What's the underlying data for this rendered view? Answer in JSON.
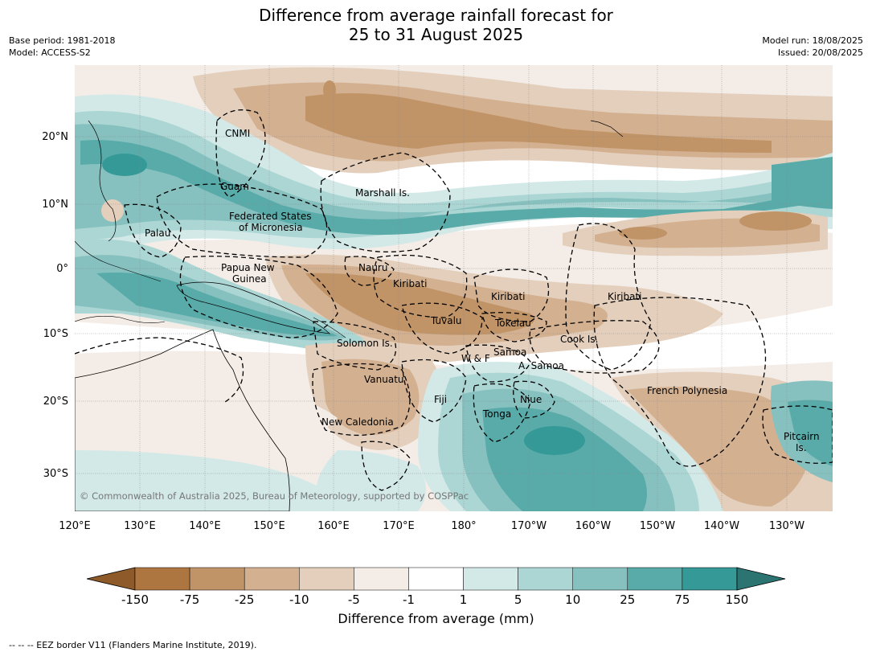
{
  "title_line1": "Difference from average rainfall forecast for",
  "title_line2": "25 to 31 August 2025",
  "base_period": "Base period: 1981-2018",
  "model": "Model: ACCESS-S2",
  "model_run": "Model run: 18/08/2025",
  "issued": "Issued: 20/08/2025",
  "copyright": "© Commonwealth of Australia 2025, Bureau of Meteorology, supported by COSPPac",
  "footnote": "--  --  -- EEZ border V11 (Flanders Marine Institute, 2019).",
  "colorbar": {
    "label": "Difference from average (mm)",
    "ticks": [
      "-150",
      "-75",
      "-25",
      "-10",
      "-5",
      "-1",
      "1",
      "5",
      "10",
      "25",
      "75",
      "150"
    ],
    "colors": [
      "#8e5a2a",
      "#ad7540",
      "#c19468",
      "#d3b090",
      "#e3cfbc",
      "#f4ece6",
      "#ffffff",
      "#d3e9e8",
      "#acd6d4",
      "#86c1c0",
      "#59aba9",
      "#359997",
      "#2b7472"
    ]
  },
  "lon_labels": [
    "120°E",
    "130°E",
    "140°E",
    "150°E",
    "160°E",
    "170°E",
    "180°",
    "170°W",
    "160°W",
    "150°W",
    "140°W",
    "130°W"
  ],
  "lat_labels": [
    "20°N",
    "10°N",
    "0°",
    "10°S",
    "20°S",
    "30°S"
  ],
  "regions": {
    "cnmi": "CNMI",
    "guam": "Guam",
    "marshall": "Marshall Is.",
    "fsm1": "Federated States",
    "fsm2": "of Micronesia",
    "palau": "Palau",
    "png1": "Papua New",
    "png2": "Guinea",
    "nauru": "Nauru",
    "kiribati_w": "Kiribati",
    "kiribati_c": "Kiribati",
    "kiribati_e": "Kiribati",
    "tuvalu": "Tuvalu",
    "tokelau": "Tokelau",
    "cook": "Cook Is.",
    "solomon": "Solomon Is.",
    "wf": "W & F",
    "samoa": "Samoa",
    "asamoa": "A. Samoa",
    "vanuatu": "Vanuatu",
    "fiji": "Fiji",
    "niue": "Niue",
    "tonga": "Tonga",
    "newcal": "New Caledonia",
    "fpoly": "French Polynesia",
    "pitcairn1": "Pitcairn",
    "pitcairn2": "Is."
  }
}
